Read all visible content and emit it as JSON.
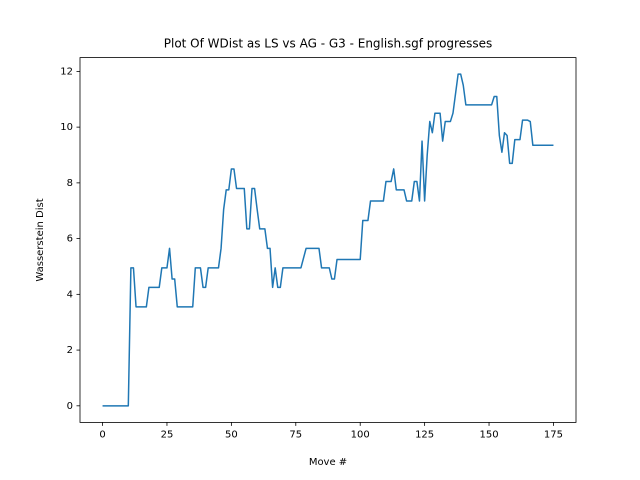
{
  "chart_data": {
    "type": "line",
    "title": "Plot Of WDist as LS vs AG - G3 - English.sgf progresses",
    "xlabel": "Move #",
    "ylabel": "Wasserstein Dist",
    "color": "#1f77b4",
    "x": [
      0,
      1,
      2,
      3,
      4,
      5,
      6,
      7,
      8,
      9,
      10,
      11,
      12,
      13,
      14,
      15,
      16,
      17,
      18,
      19,
      20,
      21,
      22,
      23,
      24,
      25,
      26,
      27,
      28,
      29,
      30,
      31,
      32,
      33,
      34,
      35,
      36,
      37,
      38,
      39,
      40,
      41,
      42,
      43,
      44,
      45,
      46,
      47,
      48,
      49,
      50,
      51,
      52,
      53,
      54,
      55,
      56,
      57,
      58,
      59,
      60,
      61,
      62,
      63,
      64,
      65,
      66,
      67,
      68,
      69,
      70,
      71,
      72,
      73,
      74,
      75,
      76,
      77,
      78,
      79,
      80,
      81,
      82,
      83,
      84,
      85,
      86,
      87,
      88,
      89,
      90,
      91,
      92,
      93,
      94,
      95,
      96,
      97,
      98,
      99,
      100,
      101,
      102,
      103,
      104,
      105,
      106,
      107,
      108,
      109,
      110,
      111,
      112,
      113,
      114,
      115,
      116,
      117,
      118,
      119,
      120,
      121,
      122,
      123,
      124,
      125,
      126,
      127,
      128,
      129,
      130,
      131,
      132,
      133,
      134,
      135,
      136,
      137,
      138,
      139,
      140,
      141,
      142,
      143,
      144,
      145,
      146,
      147,
      148,
      149,
      150,
      151,
      152,
      153,
      154,
      155,
      156,
      157,
      158,
      159,
      160,
      161,
      162,
      163,
      164,
      165,
      166,
      167,
      168,
      169,
      170,
      171,
      172,
      173,
      174,
      175
    ],
    "values": [
      0,
      0,
      0,
      0,
      0,
      0,
      0,
      0,
      0,
      0,
      0,
      4.95,
      4.95,
      3.55,
      3.55,
      3.55,
      3.55,
      3.55,
      4.25,
      4.25,
      4.25,
      4.25,
      4.25,
      4.95,
      4.95,
      4.95,
      5.65,
      4.55,
      4.55,
      3.55,
      3.55,
      3.55,
      3.55,
      3.55,
      3.55,
      3.55,
      4.95,
      4.95,
      4.95,
      4.25,
      4.25,
      4.95,
      4.95,
      4.95,
      4.95,
      4.95,
      5.65,
      7.05,
      7.75,
      7.75,
      8.5,
      8.5,
      7.8,
      7.8,
      7.8,
      7.8,
      6.35,
      6.35,
      7.8,
      7.8,
      7.05,
      6.35,
      6.35,
      6.35,
      5.65,
      5.65,
      4.25,
      4.95,
      4.25,
      4.25,
      4.95,
      4.95,
      4.95,
      4.95,
      4.95,
      4.95,
      4.95,
      4.95,
      5.3,
      5.65,
      5.65,
      5.65,
      5.65,
      5.65,
      5.65,
      4.95,
      4.95,
      4.95,
      4.95,
      4.55,
      4.55,
      5.25,
      5.25,
      5.25,
      5.25,
      5.25,
      5.25,
      5.25,
      5.25,
      5.25,
      5.25,
      6.65,
      6.65,
      6.65,
      7.35,
      7.35,
      7.35,
      7.35,
      7.35,
      7.35,
      8.05,
      8.05,
      8.05,
      8.5,
      7.75,
      7.75,
      7.75,
      7.75,
      7.35,
      7.35,
      7.35,
      8.05,
      8.05,
      7.35,
      9.5,
      7.35,
      9.0,
      10.2,
      9.8,
      10.5,
      10.5,
      10.5,
      9.5,
      10.2,
      10.2,
      10.2,
      10.5,
      11.2,
      11.9,
      11.9,
      11.5,
      10.8,
      10.8,
      10.8,
      10.8,
      10.8,
      10.8,
      10.8,
      10.8,
      10.8,
      10.8,
      10.8,
      11.1,
      11.1,
      9.7,
      9.1,
      9.8,
      9.7,
      8.7,
      8.7,
      9.55,
      9.55,
      9.55,
      10.25,
      10.25,
      10.25,
      10.2,
      9.35,
      9.35,
      9.35,
      9.35,
      9.35,
      9.35,
      9.35,
      9.35,
      9.35
    ],
    "xlim": [
      -8.75,
      183.75
    ],
    "ylim": [
      -0.595,
      12.495
    ],
    "xticks": [
      0,
      25,
      50,
      75,
      100,
      125,
      150,
      175
    ],
    "yticks": [
      0,
      2,
      4,
      6,
      8,
      10,
      12
    ]
  }
}
